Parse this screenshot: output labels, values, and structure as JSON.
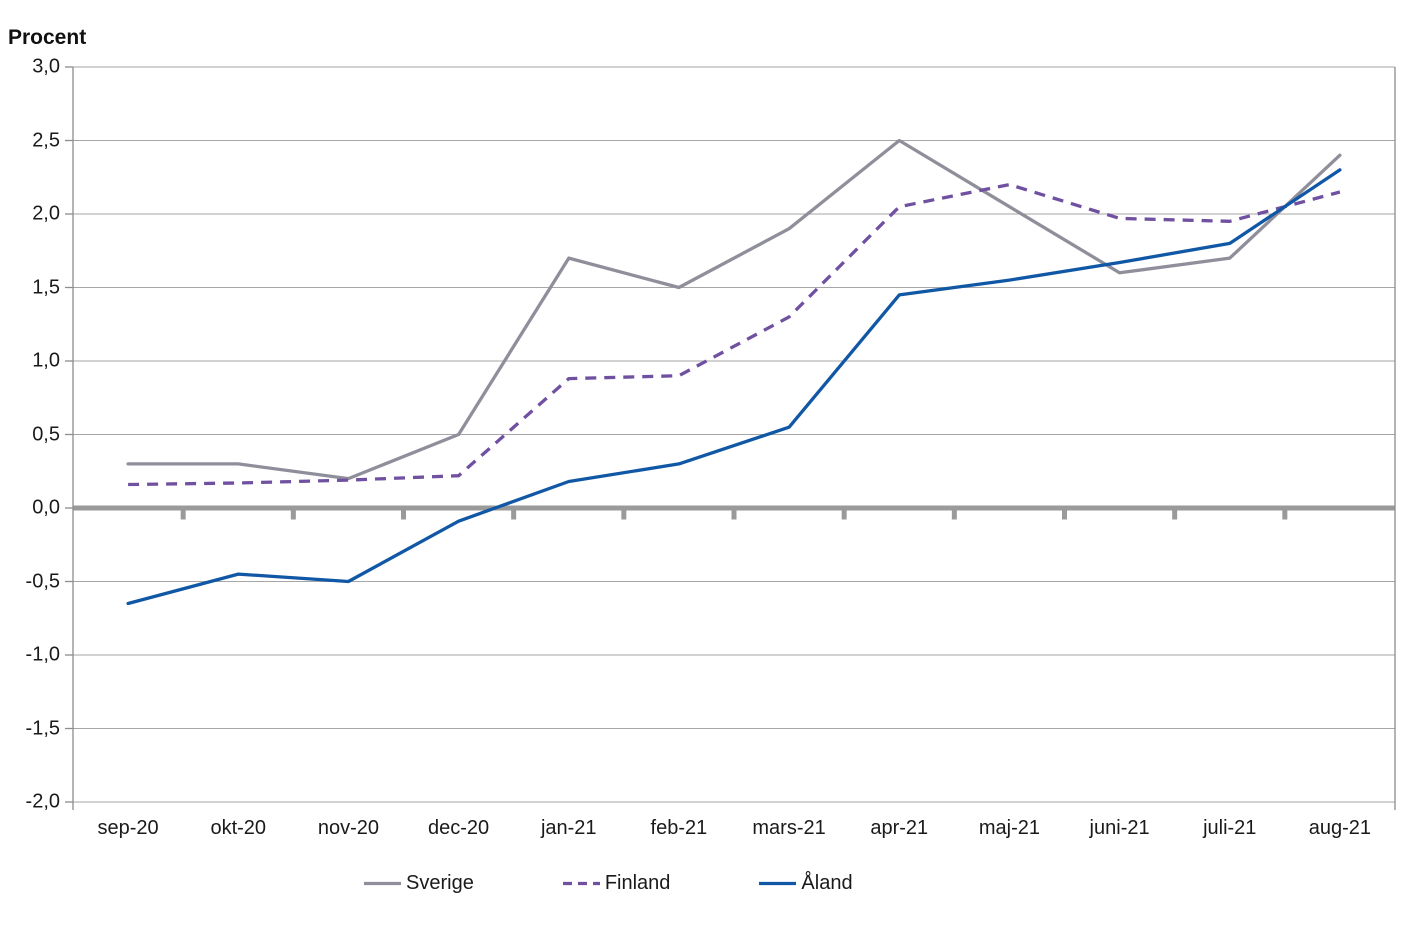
{
  "chart_data": {
    "type": "line",
    "title": "Procent",
    "categories": [
      "sep-20",
      "okt-20",
      "nov-20",
      "dec-20",
      "jan-21",
      "feb-21",
      "mars-21",
      "apr-21",
      "maj-21",
      "juni-21",
      "juli-21",
      "aug-21"
    ],
    "series": [
      {
        "name": "Sverige",
        "color": "#8f8f9b",
        "dash": "solid",
        "values": [
          0.3,
          0.3,
          0.2,
          0.5,
          1.7,
          1.5,
          1.9,
          2.5,
          2.05,
          1.6,
          1.7,
          2.4
        ]
      },
      {
        "name": "Finland",
        "color": "#7050a0",
        "dash": "dashed",
        "values": [
          0.16,
          0.17,
          0.19,
          0.22,
          0.88,
          0.9,
          1.3,
          2.05,
          2.2,
          1.97,
          1.95,
          2.15
        ]
      },
      {
        "name": "Åland",
        "color": "#1057a5",
        "dash": "solid",
        "values": [
          -0.65,
          -0.45,
          -0.5,
          -0.09,
          0.18,
          0.3,
          0.55,
          1.45,
          1.55,
          1.67,
          1.8,
          2.3
        ]
      }
    ],
    "ylabel": "Procent",
    "xlabel": "",
    "ylim": [
      -2.0,
      3.0
    ],
    "ytick_step": 0.5,
    "ytick_labels": [
      "3,0",
      "2,5",
      "2,0",
      "1,5",
      "1,0",
      "0,5",
      "0,0",
      "-0,5",
      "-1,0",
      "-1,5",
      "-2,0"
    ],
    "grid": true,
    "legend_position": "bottom",
    "styles": {
      "grid_color": "#a6a6a6",
      "axis_color": "#8c8c8c",
      "zero_line_color": "#9a9a9a",
      "text_color": "#1a1a1a"
    }
  }
}
